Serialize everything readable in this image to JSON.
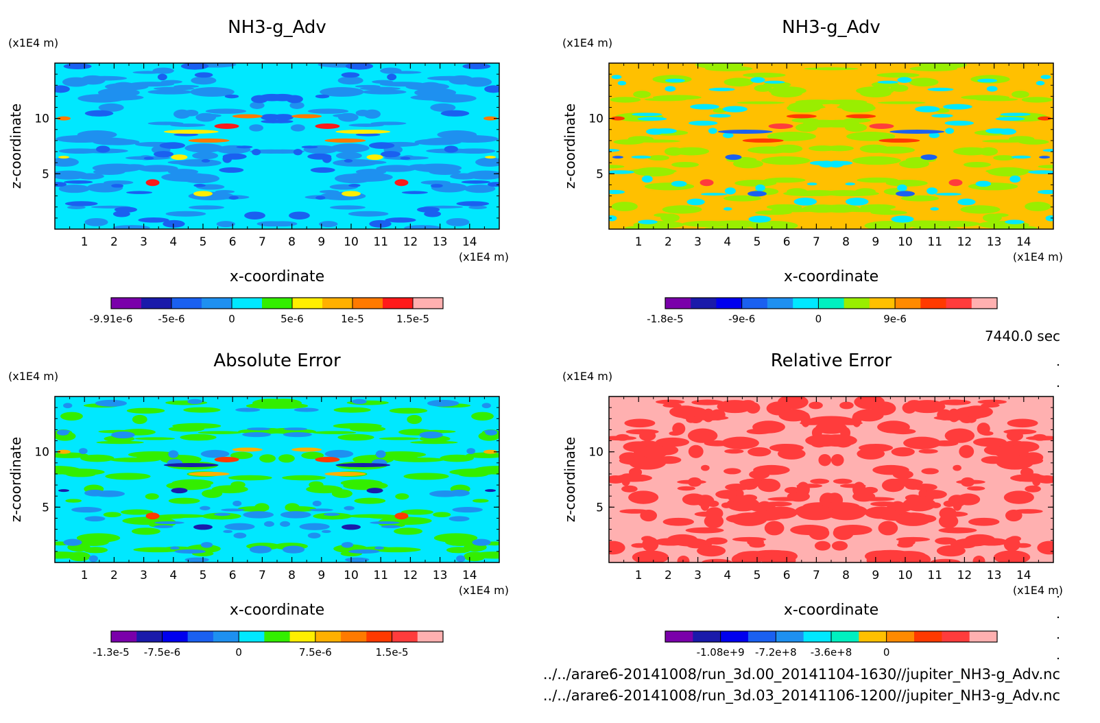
{
  "time_label": "7440.0 sec",
  "footer": {
    "line1": "../../arare6-20141008/run_3d.00_20141104-1630//jupiter_NH3-g_Adv.nc",
    "line2": "../../arare6-20141008/run_3d.03_20141106-1200//jupiter_NH3-g_Adv.nc"
  },
  "colors": {
    "palette": [
      "#7a00aa",
      "#1a1aaa",
      "#0000ee",
      "#1a60f0",
      "#1e90f0",
      "#00e8ff",
      "#00f0c0",
      "#33ee00",
      "#ffee00",
      "#ffb000",
      "#ff7a00",
      "#ff3a00",
      "#ff3c3c",
      "#ffb0b0"
    ]
  },
  "chart_data": [
    {
      "id": "p1",
      "type": "heatmap",
      "title": "NH3-g_Adv",
      "xlabel": "x-coordinate",
      "ylabel": "z-coordinate",
      "x_unit": "(x1E4 m)",
      "y_unit": "(x1E4 m)",
      "xlim": [
        0,
        15
      ],
      "ylim": [
        0,
        15
      ],
      "xticks": [
        "1",
        "2",
        "3",
        "4",
        "5",
        "6",
        "7",
        "8",
        "9",
        "10",
        "11",
        "12",
        "13",
        "14"
      ],
      "yticks": [
        "5",
        "10"
      ],
      "colorbar": {
        "colors": [
          "#7a00aa",
          "#1a1aaa",
          "#1a60f0",
          "#1e90f0",
          "#00e8ff",
          "#33ee00",
          "#ffee00",
          "#ffb000",
          "#ff7a00",
          "#ff1a1a",
          "#ffb0b0"
        ],
        "labels": [
          "-9.91e-6",
          "-5e-6",
          "0",
          "5e-6",
          "1e-5",
          "1.5e-5"
        ],
        "label_bounds": [
          0,
          2,
          4,
          6,
          8,
          10
        ]
      },
      "field": {
        "background": 4,
        "primary": 3,
        "secondary": 2,
        "highlight": [
          6,
          8,
          9
        ],
        "mode": "normal"
      }
    },
    {
      "id": "p2",
      "type": "heatmap",
      "title": "NH3-g_Adv",
      "xlabel": "x-coordinate",
      "ylabel": "z-coordinate",
      "x_unit": "(x1E4 m)",
      "y_unit": "(x1E4 m)",
      "xlim": [
        0,
        15
      ],
      "ylim": [
        0,
        15
      ],
      "xticks": [
        "1",
        "2",
        "3",
        "4",
        "5",
        "6",
        "7",
        "8",
        "9",
        "10",
        "11",
        "12",
        "13",
        "14"
      ],
      "yticks": [
        "5",
        "10"
      ],
      "colorbar": {
        "colors": [
          "#7a00aa",
          "#1a1aaa",
          "#0000ee",
          "#1a60f0",
          "#1e90f0",
          "#00e8ff",
          "#00f0c0",
          "#99ee00",
          "#ffc000",
          "#ff8a00",
          "#ff3a00",
          "#ff3c3c",
          "#ffb0b0"
        ],
        "labels": [
          "-1.8e-5",
          "-9e-6",
          "0",
          "9e-6"
        ],
        "label_bounds": [
          0,
          3,
          6,
          9
        ]
      },
      "field": {
        "background": 8,
        "primary": 7,
        "secondary": 5,
        "highlight": [
          3,
          10,
          11
        ],
        "mode": "normal"
      }
    },
    {
      "id": "p3",
      "type": "heatmap",
      "title": "Absolute Error",
      "xlabel": "x-coordinate",
      "ylabel": "z-coordinate",
      "x_unit": "(x1E4 m)",
      "y_unit": "(x1E4 m)",
      "xlim": [
        0,
        15
      ],
      "ylim": [
        0,
        15
      ],
      "xticks": [
        "1",
        "2",
        "3",
        "4",
        "5",
        "6",
        "7",
        "8",
        "9",
        "10",
        "11",
        "12",
        "13",
        "14"
      ],
      "yticks": [
        "5",
        "10"
      ],
      "colorbar": {
        "colors": [
          "#7a00aa",
          "#1a1aaa",
          "#0000ee",
          "#1a60f0",
          "#1e90f0",
          "#00e8ff",
          "#33ee00",
          "#ffee00",
          "#ffb000",
          "#ff7a00",
          "#ff3a00",
          "#ff3c3c",
          "#ffb0b0"
        ],
        "labels": [
          "-1.3e-5",
          "-7.5e-6",
          "0",
          "7.5e-6",
          "1.5e-5"
        ],
        "label_bounds": [
          0,
          2,
          5,
          8,
          11
        ]
      },
      "field": {
        "background": 5,
        "primary": 6,
        "secondary": 4,
        "highlight": [
          1,
          8,
          10
        ],
        "mode": "normal"
      }
    },
    {
      "id": "p4",
      "type": "heatmap",
      "title": "Relative Error",
      "xlabel": "x-coordinate",
      "ylabel": "z-coordinate",
      "x_unit": "(x1E4 m)",
      "y_unit": "(x1E4 m)",
      "xlim": [
        0,
        15
      ],
      "ylim": [
        0,
        15
      ],
      "xticks": [
        "1",
        "2",
        "3",
        "4",
        "5",
        "6",
        "7",
        "8",
        "9",
        "10",
        "11",
        "12",
        "13",
        "14"
      ],
      "yticks": [
        "5",
        "10"
      ],
      "colorbar": {
        "colors": [
          "#7a00aa",
          "#1a1aaa",
          "#0000ee",
          "#1a60f0",
          "#1e90f0",
          "#00e8ff",
          "#00f0c0",
          "#ffc000",
          "#ff8a00",
          "#ff3a00",
          "#ff3c3c",
          "#ffb0b0"
        ],
        "labels": [
          "-1.08e+9",
          "-7.2e+8",
          "-3.6e+8",
          "0"
        ],
        "label_bounds": [
          2,
          4,
          6,
          8
        ]
      },
      "field": {
        "background": 11,
        "primary": 10,
        "secondary": 10,
        "highlight": [],
        "mode": "relative"
      }
    }
  ]
}
